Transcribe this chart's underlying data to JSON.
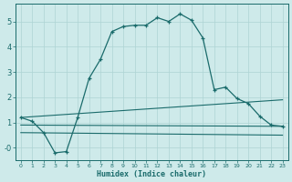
{
  "title": "",
  "xlabel": "Humidex (Indice chaleur)",
  "bg_color": "#ceeaea",
  "line_color": "#1a6b6b",
  "grid_color": "#aed4d4",
  "xlim": [
    -0.5,
    23.5
  ],
  "ylim": [
    -0.5,
    5.7
  ],
  "xticks": [
    0,
    1,
    2,
    3,
    4,
    5,
    6,
    7,
    8,
    9,
    10,
    11,
    12,
    13,
    14,
    15,
    16,
    17,
    18,
    19,
    20,
    21,
    22,
    23
  ],
  "yticks": [
    0,
    1,
    2,
    3,
    4,
    5
  ],
  "ytick_labels": [
    "-0",
    "1",
    "2",
    "3",
    "4",
    "5"
  ],
  "series1_x": [
    0,
    1,
    2,
    3,
    4,
    5,
    6,
    7,
    8,
    9,
    10,
    11,
    12,
    13,
    14,
    15,
    16,
    17,
    18,
    19,
    20,
    21,
    22,
    23
  ],
  "series1_y": [
    1.2,
    1.05,
    0.6,
    -0.2,
    -0.15,
    1.2,
    2.75,
    3.5,
    4.6,
    4.8,
    4.85,
    4.85,
    5.15,
    5.0,
    5.3,
    5.05,
    4.35,
    2.3,
    2.4,
    1.95,
    1.75,
    1.25,
    0.9,
    0.85
  ],
  "line1_x": [
    0,
    23
  ],
  "line1_y": [
    1.2,
    1.9
  ],
  "line2_x": [
    0,
    23
  ],
  "line2_y": [
    0.9,
    0.85
  ],
  "line3_x": [
    0,
    23
  ],
  "line3_y": [
    0.6,
    0.5
  ]
}
